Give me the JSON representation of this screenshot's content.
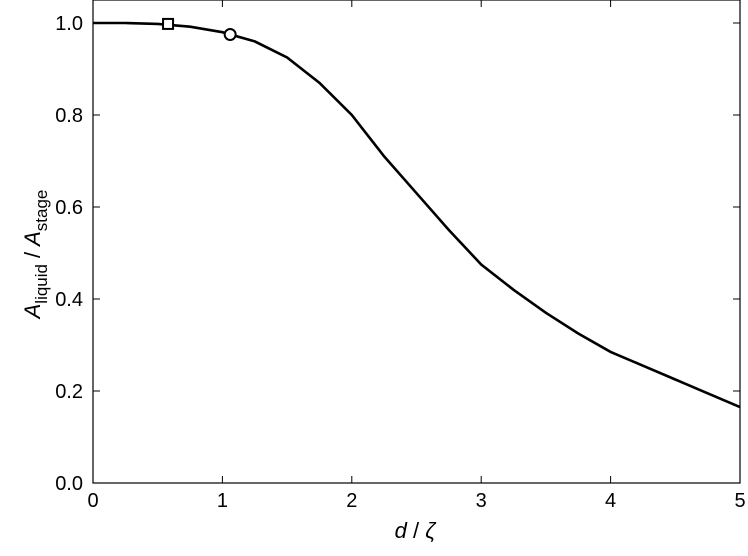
{
  "chart_data": {
    "type": "line",
    "xlabel": {
      "var": "d",
      "sep": "/",
      "unit": "ζ"
    },
    "ylabel": {
      "main1": "A",
      "sub1": "liquid",
      "sep": "/",
      "main2": "A",
      "sub2": "stage"
    },
    "x": [
      0,
      0.25,
      0.5,
      0.75,
      1,
      1.25,
      1.5,
      1.75,
      2,
      2.25,
      2.5,
      2.75,
      3,
      3.25,
      3.5,
      3.75,
      4,
      4.25,
      4.5,
      4.75,
      5
    ],
    "series": [
      {
        "color": "#000000",
        "values": [
          1.0,
          1.0,
          0.998,
          0.992,
          0.98,
          0.96,
          0.925,
          0.87,
          0.8,
          0.71,
          0.63,
          0.55,
          0.475,
          0.42,
          0.37,
          0.325,
          0.285,
          0.255,
          0.225,
          0.195,
          0.165
        ]
      }
    ],
    "markers": [
      {
        "shape": "square",
        "x": 0.58,
        "y": 0.998
      },
      {
        "shape": "circle",
        "x": 1.06,
        "y": 0.975
      }
    ],
    "xlim": [
      0,
      5
    ],
    "ylim": [
      0,
      1.05
    ],
    "xticks": [
      0,
      1,
      2,
      3,
      4,
      5
    ],
    "yticks": [
      {
        "value": 0,
        "label": "0.0"
      },
      0.2,
      0.4,
      0.6,
      0.8,
      {
        "value": 1,
        "label": "1.0"
      }
    ]
  }
}
